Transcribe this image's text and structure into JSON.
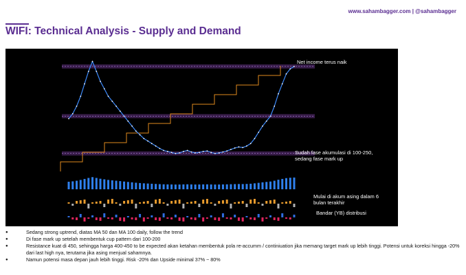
{
  "header": {
    "site": "www.sahambagger.com | @sahambagger",
    "title": "WIFI: Technical Analysis - Supply and Demand"
  },
  "annotations": {
    "net_income": "Net income terus naik",
    "accumulation_line1": "Sudah fase akumulasi di 100-250,",
    "accumulation_line2": "sedang fase mark up",
    "foreign_line1": "Mulai di akum asing dalam 6",
    "foreign_line2": "bulan terakhir",
    "bandar": "Bandar (YB) distribusi"
  },
  "bullets": [
    "Sedang strong uptrend, diatas MA 50 dan MA 100 daily, follow the trend",
    "Di fase mark up setelah membentuk cup pattern dari 100-200",
    "Resistance kuat di 450, sehingga harga 400-450 to be expected akan ketahan membentuk pola re-accumm / continiuation jika memang target mark up lebih tinggi. Potensi untuk koreksi hingga -20% dari last high nya, terutama jika asing menjual sahamnya.",
    "Namun potensi masa depan jauh lebih tinggi. Risk -20% dan Upside minimal 37% ~ 80%"
  ],
  "colors": {
    "brand": "#5a2d91",
    "chart_bg": "#000000",
    "candle_up": "#3d8bfd",
    "candle_down": "#ffffff",
    "supply_zone": "#7b3fa0",
    "net_income": "#e08a1e",
    "volume": "#2f80ed",
    "foreign_flow_up": "#e89b2d",
    "foreign_flow_down": "#b0b0b0",
    "broker_sell": "#e0245e",
    "broker_buy": "#2f6de0"
  },
  "chart_data": {
    "type": "line",
    "title": "",
    "xlabel": "",
    "ylabel": "",
    "series": [
      {
        "values": [
          240,
          260,
          290,
          330,
          380,
          430,
          470,
          430,
          390,
          360,
          330,
          310,
          290,
          270,
          250,
          230,
          210,
          190,
          175,
          160,
          150,
          140,
          130,
          120,
          112,
          108,
          104,
          100,
          102,
          108,
          112,
          106,
          102,
          104,
          108,
          110,
          104,
          100,
          102,
          106,
          110,
          116,
          122,
          126,
          124,
          130,
          140,
          160,
          185,
          210,
          230,
          250,
          290,
          340,
          380,
          420,
          440,
          450
        ]
      }
    ],
    "reference_levels": [
      450,
      250,
      100
    ],
    "grid": false,
    "legend": "none"
  }
}
